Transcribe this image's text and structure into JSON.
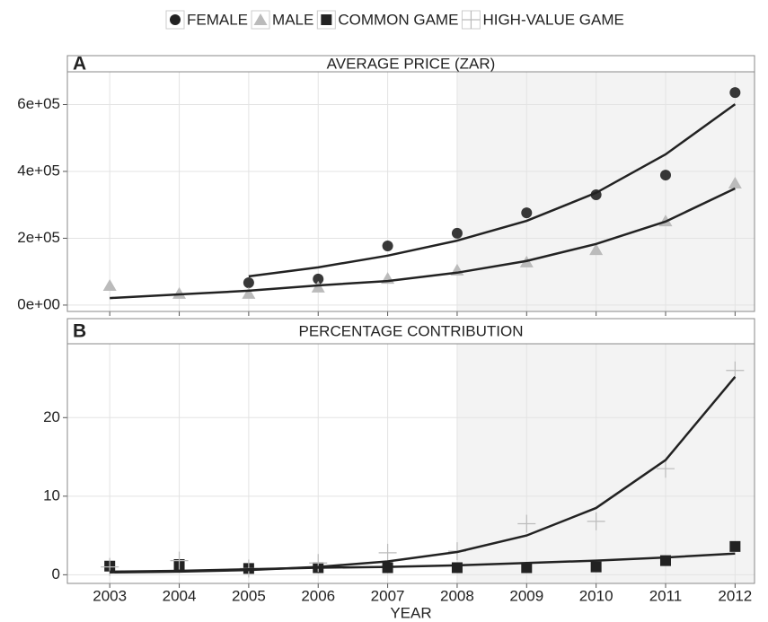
{
  "chart_data": [
    {
      "type": "scatter",
      "panel_label": "A",
      "title": "AVERAGE PRICE (ZAR)",
      "x": [
        2003,
        2004,
        2005,
        2006,
        2007,
        2008,
        2009,
        2010,
        2011,
        2012
      ],
      "xlim": [
        2002.39,
        2012.28
      ],
      "xticks": [
        2003,
        2004,
        2005,
        2006,
        2007,
        2008,
        2009,
        2010,
        2011,
        2012
      ],
      "ylim": [
        -19000,
        698000
      ],
      "yticks": [
        {
          "value": 0,
          "label": "0e+00"
        },
        {
          "value": 200000,
          "label": "2e+05"
        },
        {
          "value": 400000,
          "label": "4e+05"
        },
        {
          "value": 600000,
          "label": "6e+05"
        }
      ],
      "grid": true,
      "shaded_from": 2008,
      "series": [
        {
          "name": "FEMALE",
          "color": "#222222",
          "marker": "circle",
          "values": [
            null,
            null,
            67000,
            78000,
            177000,
            215000,
            276000,
            330000,
            389000,
            636000
          ]
        },
        {
          "name": "MALE",
          "color": "#bbbbbb",
          "marker": "triangle",
          "values": [
            59000,
            35000,
            35000,
            54000,
            80000,
            105000,
            129000,
            166000,
            252000,
            365000
          ]
        }
      ],
      "trend_lines": [
        {
          "color": "#222222",
          "values": [
            null,
            null,
            86000,
            113000,
            148000,
            193000,
            252000,
            336000,
            451000,
            601000
          ]
        },
        {
          "color": "#222222",
          "values": [
            21000,
            32000,
            43000,
            59000,
            72000,
            97000,
            132000,
            183000,
            250000,
            349000
          ]
        }
      ]
    },
    {
      "type": "scatter",
      "panel_label": "B",
      "title": "PERCENTAGE CONTRIBUTION",
      "x_label": "YEAR",
      "x": [
        2003,
        2004,
        2005,
        2006,
        2007,
        2008,
        2009,
        2010,
        2011,
        2012
      ],
      "xlim": [
        2002.39,
        2012.28
      ],
      "xticks": [
        2003,
        2004,
        2005,
        2006,
        2007,
        2008,
        2009,
        2010,
        2011,
        2012
      ],
      "ylim": [
        -1.1,
        29.4
      ],
      "yticks": [
        0,
        10,
        20
      ],
      "grid": true,
      "shaded_from": 2008,
      "series": [
        {
          "name": "COMMON GAME",
          "color": "#222222",
          "marker": "square",
          "values": [
            1.1,
            1.3,
            0.8,
            0.9,
            0.9,
            0.9,
            0.9,
            1.0,
            1.8,
            3.6
          ]
        },
        {
          "name": "HIGH-VALUE GAME",
          "color": "#bbbbbb",
          "marker": "plus",
          "values": [
            1.0,
            1.8,
            0.8,
            1.5,
            2.8,
            3.0,
            6.5,
            6.8,
            13.5,
            26.0
          ]
        }
      ],
      "trend_lines": [
        {
          "color": "#222222",
          "values": [
            0.3,
            0.4,
            0.6,
            1.0,
            1.7,
            2.9,
            5.0,
            8.5,
            14.6,
            25.2
          ]
        },
        {
          "color": "#222222",
          "values": [
            0.4,
            0.5,
            0.7,
            0.9,
            1.0,
            1.2,
            1.5,
            1.8,
            2.2,
            2.7
          ]
        }
      ]
    }
  ]
}
